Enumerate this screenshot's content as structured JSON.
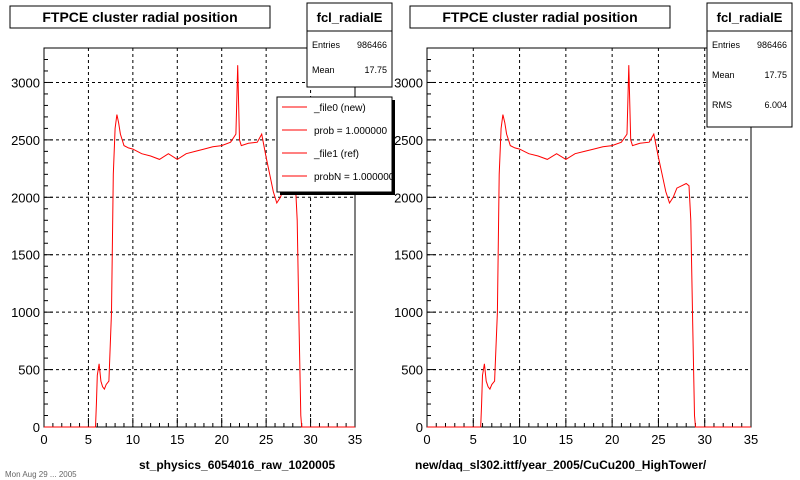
{
  "footer_note": "Mon Aug 29 ... 2005",
  "chart_data": [
    {
      "type": "line",
      "title": "FTPCE cluster radial position",
      "xlabel": "st_physics_6054016_raw_1020005",
      "ylabel": "",
      "xlim": [
        0,
        35
      ],
      "ylim": [
        0,
        3300
      ],
      "x_ticks": [
        0,
        5,
        10,
        15,
        20,
        25,
        30,
        35
      ],
      "y_ticks": [
        0,
        500,
        1000,
        1500,
        2000,
        2500,
        3000
      ],
      "grid": true,
      "line_color": "#ff0000",
      "x": [
        0,
        5.8,
        5.9,
        6.0,
        6.2,
        6.4,
        6.6,
        6.8,
        7.0,
        7.3,
        7.6,
        7.8,
        8.0,
        8.2,
        8.4,
        8.6,
        8.8,
        9.0,
        9.5,
        10,
        11,
        12,
        13,
        14,
        15,
        16,
        17,
        18,
        19,
        20,
        21,
        21.6,
        21.8,
        22.0,
        22.2,
        23,
        24,
        24.5,
        25,
        25.4,
        25.8,
        26.2,
        26.6,
        27,
        27.5,
        28,
        28.3,
        28.5,
        28.7,
        28.9,
        29.0,
        35
      ],
      "y": [
        0,
        0,
        200,
        450,
        550,
        400,
        350,
        330,
        370,
        400,
        1000,
        2200,
        2600,
        2720,
        2650,
        2550,
        2500,
        2450,
        2430,
        2420,
        2380,
        2360,
        2330,
        2380,
        2330,
        2380,
        2400,
        2420,
        2440,
        2450,
        2480,
        2550,
        3150,
        2500,
        2450,
        2470,
        2480,
        2550,
        2350,
        2200,
        2050,
        1950,
        2000,
        2080,
        2100,
        2120,
        2100,
        1800,
        900,
        100,
        0,
        0
      ],
      "stats": {
        "name": "fcl_radialE",
        "rows": [
          {
            "label": "Entries",
            "value": "986466"
          },
          {
            "label": "Mean",
            "value": "17.75"
          }
        ]
      },
      "legend": {
        "placement": "top-right",
        "entries": [
          "_file0 (new)",
          "prob = 1.000000",
          "_file1 (ref)",
          "probN = 1.000000"
        ]
      }
    },
    {
      "type": "line",
      "title": "FTPCE cluster radial position",
      "xlabel": "new/daq_sl302.ittf/year_2005/CuCu200_HighTower/",
      "ylabel": "",
      "xlim": [
        0,
        35
      ],
      "ylim": [
        0,
        3300
      ],
      "x_ticks": [
        0,
        5,
        10,
        15,
        20,
        25,
        30,
        35
      ],
      "y_ticks": [
        0,
        500,
        1000,
        1500,
        2000,
        2500,
        3000
      ],
      "grid": true,
      "line_color": "#ff0000",
      "x": [
        0,
        5.8,
        5.9,
        6.0,
        6.2,
        6.4,
        6.6,
        6.8,
        7.0,
        7.3,
        7.6,
        7.8,
        8.0,
        8.2,
        8.4,
        8.6,
        8.8,
        9.0,
        9.5,
        10,
        11,
        12,
        13,
        14,
        15,
        16,
        17,
        18,
        19,
        20,
        21,
        21.6,
        21.8,
        22.0,
        22.2,
        23,
        24,
        24.5,
        25,
        25.4,
        25.8,
        26.2,
        26.6,
        27,
        27.5,
        28,
        28.3,
        28.5,
        28.7,
        28.9,
        29.0,
        35
      ],
      "y": [
        0,
        0,
        200,
        450,
        550,
        400,
        350,
        330,
        370,
        400,
        1000,
        2200,
        2600,
        2720,
        2650,
        2550,
        2500,
        2450,
        2430,
        2420,
        2380,
        2360,
        2330,
        2380,
        2330,
        2380,
        2400,
        2420,
        2440,
        2450,
        2480,
        2550,
        3150,
        2500,
        2450,
        2470,
        2480,
        2550,
        2350,
        2200,
        2050,
        1950,
        2000,
        2080,
        2100,
        2120,
        2100,
        1800,
        900,
        100,
        0,
        0
      ],
      "stats": {
        "name": "fcl_radialE",
        "rows": [
          {
            "label": "Entries",
            "value": "986466"
          },
          {
            "label": "Mean",
            "value": "17.75"
          },
          {
            "label": "RMS",
            "value": "6.004"
          }
        ]
      }
    }
  ]
}
